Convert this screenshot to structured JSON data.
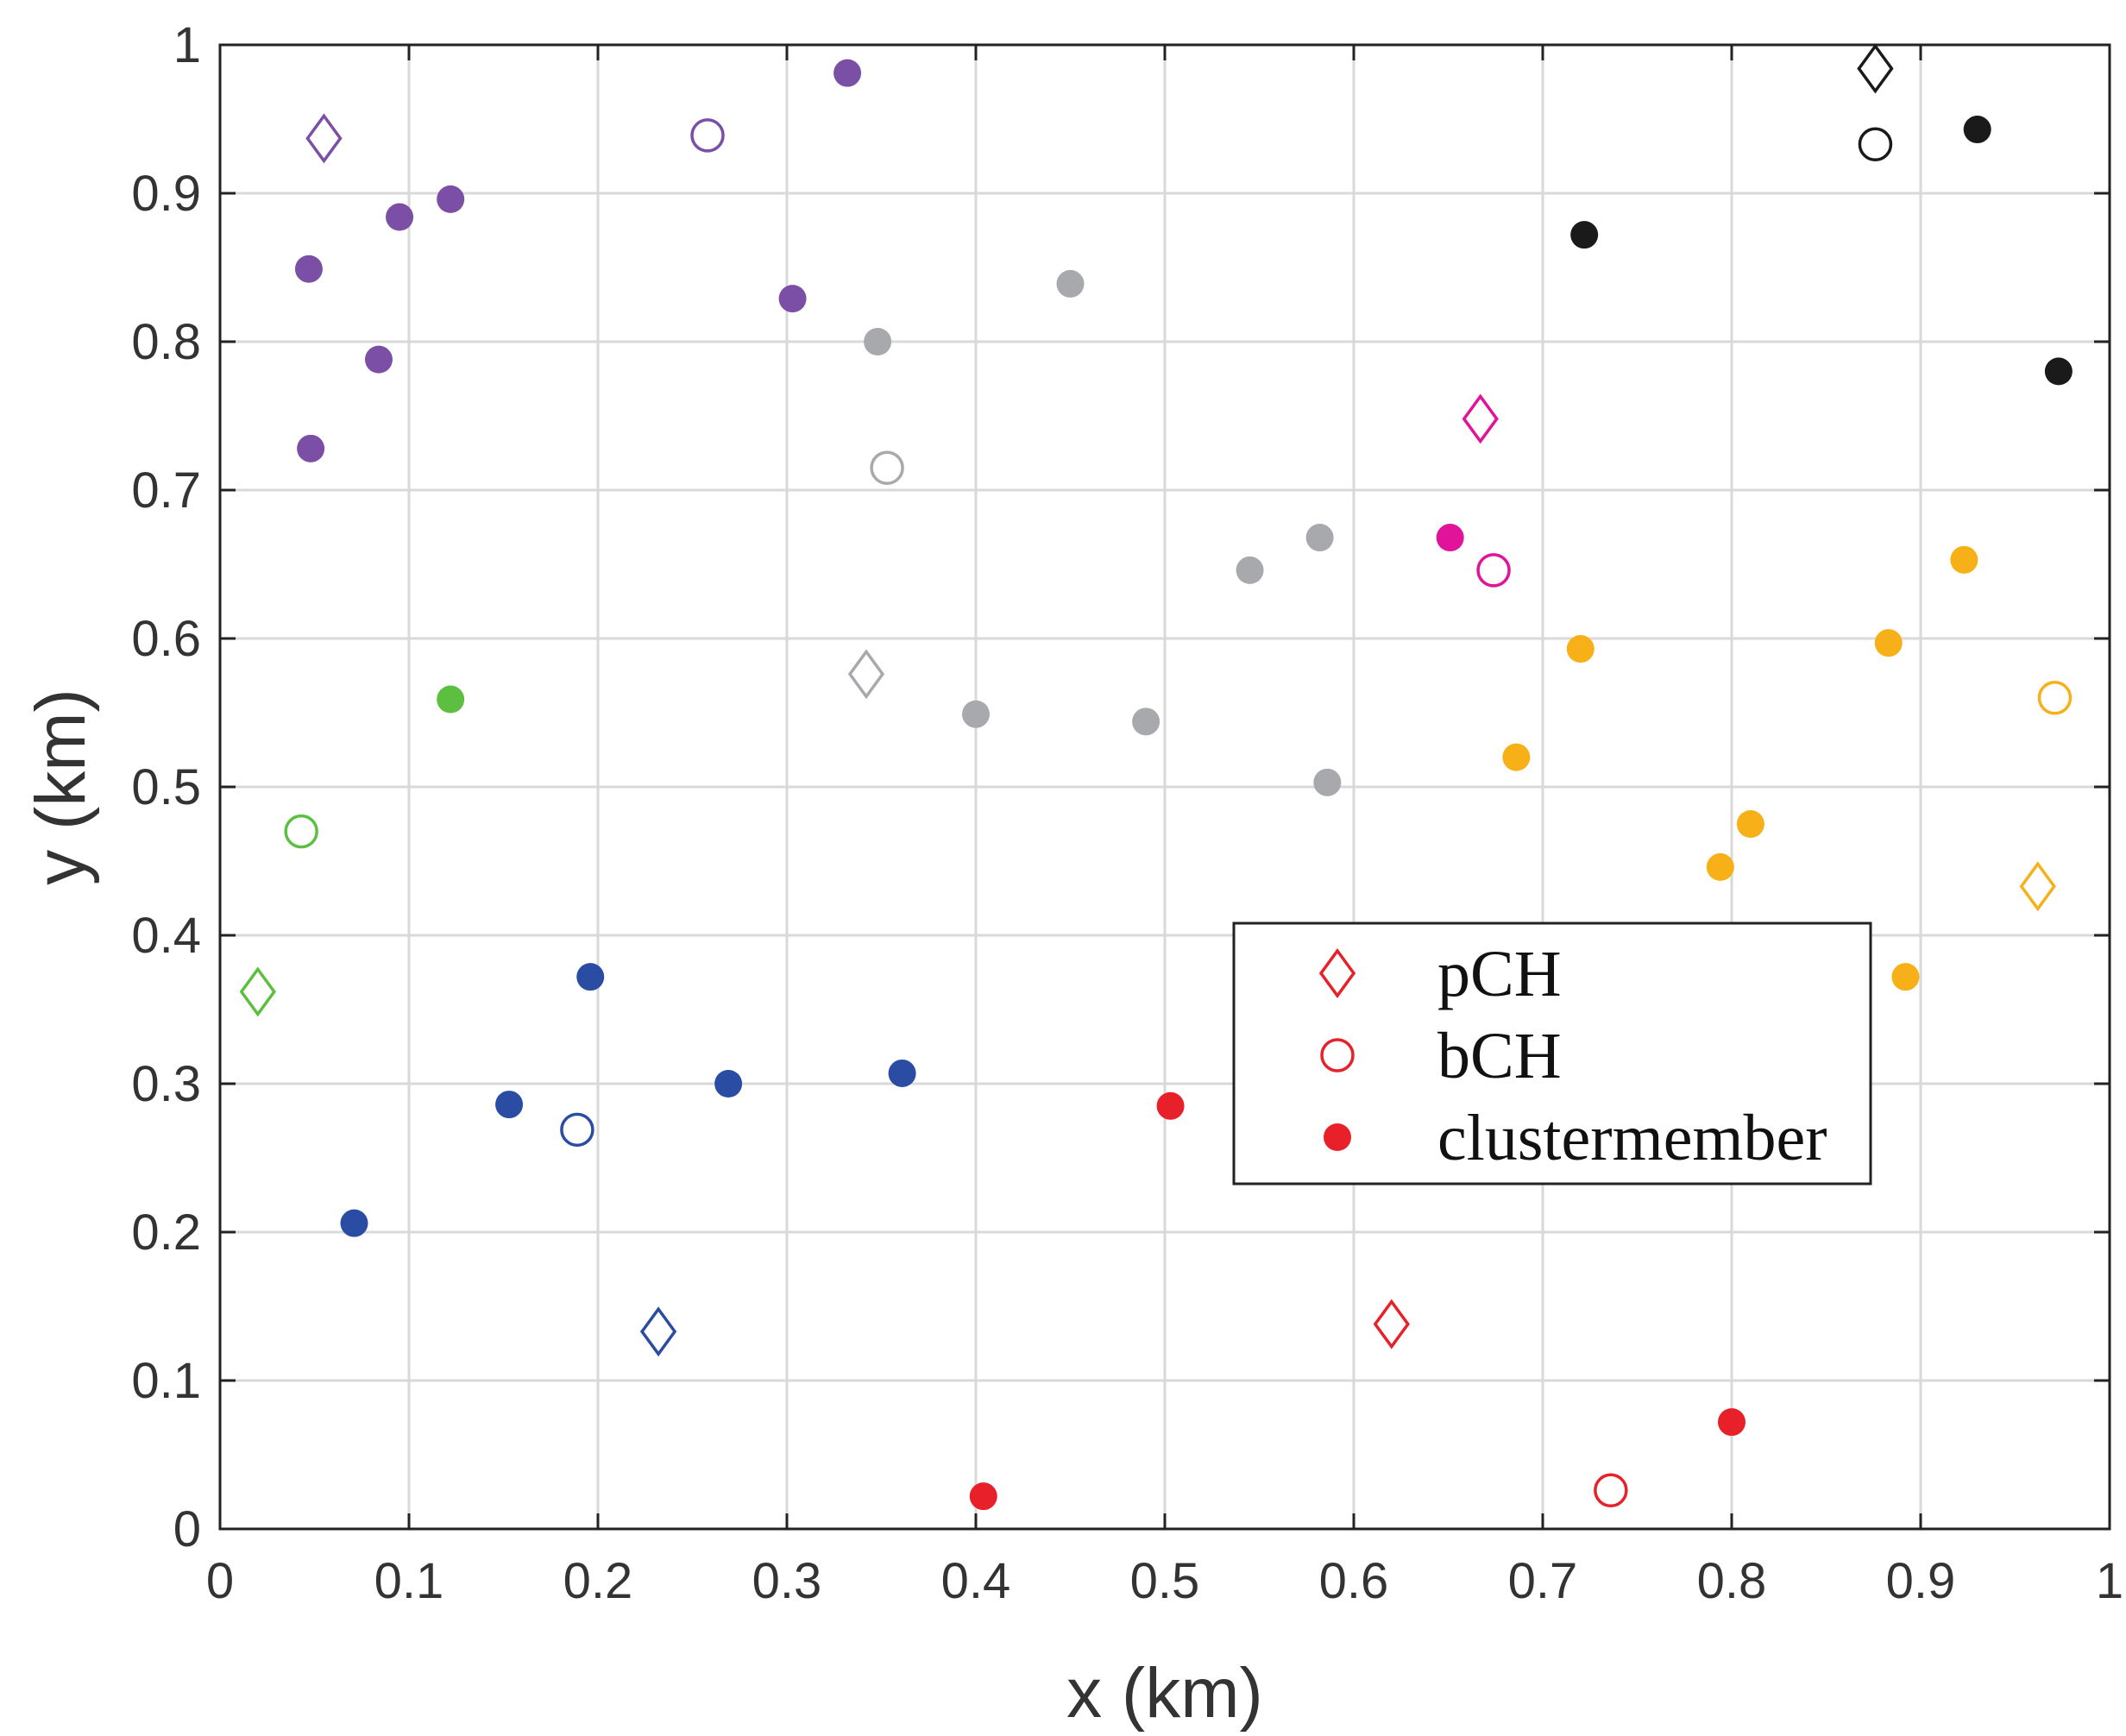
{
  "chart_data": {
    "type": "scatter",
    "xlabel": "x (km)",
    "ylabel": "y (km)",
    "xlim": [
      0,
      1
    ],
    "ylim": [
      0,
      1
    ],
    "xticks": [
      "0",
      "0.1",
      "0.2",
      "0.3",
      "0.4",
      "0.5",
      "0.6",
      "0.7",
      "0.8",
      "0.9",
      "1"
    ],
    "yticks": [
      "0",
      "0.1",
      "0.2",
      "0.3",
      "0.4",
      "0.5",
      "0.6",
      "0.7",
      "0.8",
      "0.9",
      "1"
    ],
    "grid": true,
    "legend": {
      "placement": "center-right",
      "entries": [
        {
          "label": "pCH",
          "marker": "diamond-open",
          "color": "#e8202a"
        },
        {
          "label": "bCH",
          "marker": "circle-open",
          "color": "#e8202a"
        },
        {
          "label": "clustermember",
          "marker": "circle-filled",
          "color": "#e8202a"
        }
      ]
    },
    "clusters": [
      {
        "color": "#7b4fa6",
        "pCH": [
          [
            0.055,
            0.937
          ]
        ],
        "bCH": [
          [
            0.258,
            0.939
          ]
        ],
        "members": [
          [
            0.332,
            0.981
          ],
          [
            0.122,
            0.896
          ],
          [
            0.095,
            0.884
          ],
          [
            0.047,
            0.849
          ],
          [
            0.303,
            0.829
          ],
          [
            0.084,
            0.788
          ],
          [
            0.048,
            0.728
          ]
        ]
      },
      {
        "color": "#a8a9ad",
        "pCH": [
          [
            0.342,
            0.576
          ]
        ],
        "bCH": [
          [
            0.353,
            0.715
          ]
        ],
        "members": [
          [
            0.45,
            0.839
          ],
          [
            0.348,
            0.8
          ],
          [
            0.582,
            0.668
          ],
          [
            0.545,
            0.646
          ],
          [
            0.4,
            0.549
          ],
          [
            0.49,
            0.544
          ],
          [
            0.586,
            0.503
          ]
        ]
      },
      {
        "color": "#1a1a1a",
        "pCH": [
          [
            0.876,
            0.984
          ]
        ],
        "bCH": [
          [
            0.876,
            0.933
          ]
        ],
        "members": [
          [
            0.93,
            0.943
          ],
          [
            0.722,
            0.872
          ],
          [
            0.973,
            0.78
          ]
        ]
      },
      {
        "color": "#e0139a",
        "pCH": [
          [
            0.667,
            0.748
          ]
        ],
        "bCH": [
          [
            0.674,
            0.646
          ]
        ],
        "members": [
          [
            0.651,
            0.668
          ]
        ]
      },
      {
        "color": "#f7b018",
        "pCH": [
          [
            0.962,
            0.433
          ]
        ],
        "bCH": [
          [
            0.971,
            0.56
          ]
        ],
        "members": [
          [
            0.923,
            0.653
          ],
          [
            0.883,
            0.597
          ],
          [
            0.72,
            0.593
          ],
          [
            0.686,
            0.52
          ],
          [
            0.81,
            0.475
          ],
          [
            0.794,
            0.446
          ],
          [
            0.892,
            0.372
          ]
        ]
      },
      {
        "color": "#5cbf3f",
        "pCH": [
          [
            0.02,
            0.362
          ]
        ],
        "bCH": [
          [
            0.043,
            0.47
          ]
        ],
        "members": [
          [
            0.122,
            0.559
          ]
        ]
      },
      {
        "color": "#2a4da3",
        "pCH": [
          [
            0.232,
            0.133
          ]
        ],
        "bCH": [
          [
            0.189,
            0.269
          ]
        ],
        "members": [
          [
            0.196,
            0.372
          ],
          [
            0.361,
            0.307
          ],
          [
            0.269,
            0.3
          ],
          [
            0.153,
            0.286
          ],
          [
            0.071,
            0.206
          ]
        ]
      },
      {
        "color": "#e8202a",
        "pCH": [
          [
            0.62,
            0.138
          ]
        ],
        "bCH": [
          [
            0.736,
            0.026
          ]
        ],
        "members": [
          [
            0.503,
            0.285
          ],
          [
            0.8,
            0.072
          ],
          [
            0.404,
            0.022
          ]
        ]
      }
    ]
  }
}
